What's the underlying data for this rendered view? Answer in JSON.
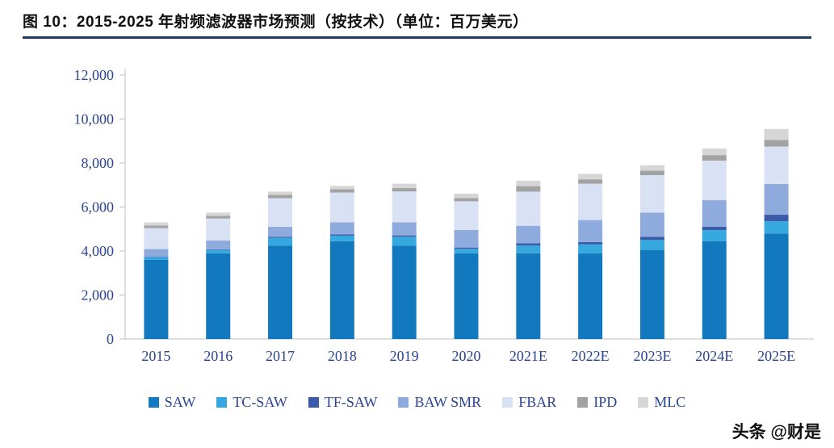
{
  "header": {
    "title": "图 10：2015-2025 年射频滤波器市场预测（按技术）（单位：百万美元）"
  },
  "watermark": "头条 @财是",
  "chart_data": {
    "type": "bar",
    "stacked": true,
    "title": "2015-2025 年射频滤波器市场预测（按技术）",
    "unit": "百万美元",
    "grid": false,
    "legend_position": "bottom",
    "categories": [
      "2015",
      "2016",
      "2017",
      "2018",
      "2019",
      "2020",
      "2021E",
      "2022E",
      "2023E",
      "2024E",
      "2025E"
    ],
    "ylim": [
      0,
      12000
    ],
    "ytick_interval": 2000,
    "ytick_labels": [
      "0",
      "2,000",
      "4,000",
      "6,000",
      "8,000",
      "10,000",
      "12,000"
    ],
    "axis_text_color": "#2b4490",
    "series": [
      {
        "name": "SAW",
        "color": "#1379bf",
        "values": [
          3600,
          3900,
          4250,
          4450,
          4250,
          3900,
          3900,
          3900,
          4050,
          4450,
          4800
        ]
      },
      {
        "name": "TC-SAW",
        "color": "#35a8e0",
        "values": [
          120,
          150,
          350,
          250,
          400,
          200,
          350,
          400,
          450,
          500,
          550
        ]
      },
      {
        "name": "TF-SAW",
        "color": "#3a5ca8",
        "values": [
          20,
          30,
          50,
          60,
          60,
          60,
          100,
          110,
          150,
          160,
          300
        ]
      },
      {
        "name": "BAW SMR",
        "color": "#8faadc",
        "values": [
          350,
          400,
          450,
          550,
          600,
          800,
          800,
          1000,
          1100,
          1200,
          1400
        ]
      },
      {
        "name": "FBAR",
        "color": "#d9e1f5",
        "values": [
          950,
          1000,
          1300,
          1350,
          1400,
          1300,
          1550,
          1650,
          1700,
          1800,
          1700
        ]
      },
      {
        "name": "IPD",
        "color": "#a2a2a2",
        "values": [
          120,
          120,
          150,
          150,
          150,
          150,
          250,
          200,
          200,
          250,
          300
        ]
      },
      {
        "name": "MLC",
        "color": "#d6d6d6",
        "values": [
          140,
          150,
          150,
          150,
          200,
          200,
          250,
          250,
          250,
          300,
          500
        ]
      }
    ]
  }
}
